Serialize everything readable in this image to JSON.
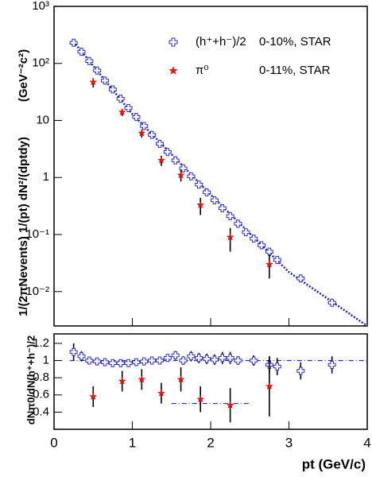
{
  "chart_data": [
    {
      "type": "scatter",
      "ylabel": "1/(2πNevents) 1/(pt) dN²/(dptdy)",
      "yunit": "(GeV⁻²c²)",
      "xlim": [
        0,
        4
      ],
      "ylim": [
        0.0025,
        1000
      ],
      "log_y": true,
      "yticks": [
        {
          "value": 1000,
          "label": "10³"
        },
        {
          "value": 100,
          "label": "10²"
        },
        10,
        1,
        {
          "value": 0.1,
          "label": "10⁻¹"
        },
        {
          "value": 0.01,
          "label": "10⁻²"
        }
      ],
      "legend": "upper right",
      "series": [
        {
          "name": "(h⁺+h⁻)/2",
          "note": "0-10%, STAR",
          "color": "#2a2acc",
          "marker": "cross",
          "x": [
            0.25,
            0.35,
            0.45,
            0.55,
            0.65,
            0.75,
            0.85,
            0.95,
            1.05,
            1.15,
            1.25,
            1.35,
            1.45,
            1.55,
            1.65,
            1.75,
            1.85,
            1.95,
            2.05,
            2.15,
            2.25,
            2.35,
            2.45,
            2.55,
            2.65,
            2.75,
            2.85,
            3.15,
            3.55
          ],
          "values": [
            230,
            160,
            110,
            75,
            50,
            35,
            24,
            16.5,
            11.5,
            8,
            5.6,
            3.9,
            2.8,
            2.0,
            1.45,
            1.05,
            0.75,
            0.55,
            0.4,
            0.29,
            0.21,
            0.155,
            0.11,
            0.085,
            0.065,
            0.05,
            0.036,
            0.017,
            0.0064
          ]
        },
        {
          "name": "π⁰",
          "note": "0-11%, STAR",
          "color": "#ee1111",
          "marker": "star",
          "x": [
            0.5,
            0.87,
            1.12,
            1.37,
            1.62,
            1.87,
            2.25,
            2.75
          ],
          "values": [
            47,
            14,
            6,
            2.0,
            1.1,
            0.33,
            0.09,
            0.03
          ],
          "lower": [
            38,
            12,
            5,
            1.6,
            0.85,
            0.22,
            0.05,
            0.017
          ],
          "upper": [
            55,
            16,
            7,
            2.4,
            1.35,
            0.44,
            0.13,
            0.045
          ]
        }
      ],
      "fit": {
        "color": "#1a1acc",
        "x": [
          0.25,
          1,
          2,
          3,
          4
        ],
        "values": [
          240,
          13,
          0.5,
          0.022,
          0.0025
        ]
      }
    },
    {
      "type": "scatter",
      "ylabel": "dNπ0/dN(h⁺+h⁻)/2",
      "xlabel": "pt (GeV/c)",
      "xlim": [
        0,
        4
      ],
      "ylim": [
        0.2,
        1.31
      ],
      "xticks": [
        0,
        1,
        2,
        3,
        4
      ],
      "yticks": [
        0.4,
        0.6,
        0.8,
        1,
        1.2
      ],
      "series": [
        {
          "color": "#2a2acc",
          "marker": "cross",
          "x": [
            0.25,
            0.35,
            0.45,
            0.55,
            0.65,
            0.75,
            0.85,
            0.95,
            1.05,
            1.15,
            1.25,
            1.35,
            1.45,
            1.55,
            1.65,
            1.75,
            1.85,
            1.95,
            2.05,
            2.15,
            2.25,
            2.35,
            2.55,
            2.75,
            2.85,
            3.15,
            3.55
          ],
          "values": [
            1.1,
            1.05,
            1.0,
            0.99,
            0.98,
            0.97,
            0.97,
            0.97,
            0.98,
            0.99,
            1.0,
            1.0,
            1.03,
            1.06,
            1.0,
            1.05,
            1.03,
            1.02,
            1.01,
            1.03,
            1.03,
            1.0,
            1.0,
            0.95,
            0.93,
            0.88,
            0.95
          ],
          "errors": [
            0.1,
            0.06,
            0.04,
            0.03,
            0.03,
            0.03,
            0.03,
            0.03,
            0.03,
            0.03,
            0.03,
            0.03,
            0.04,
            0.05,
            0.05,
            0.06,
            0.06,
            0.06,
            0.06,
            0.07,
            0.07,
            0.05,
            0.06,
            0.1,
            0.1,
            0.1,
            0.1
          ]
        },
        {
          "color": "#ee1111",
          "marker": "star",
          "x": [
            0.5,
            0.87,
            1.12,
            1.37,
            1.62,
            1.87,
            2.25,
            2.75
          ],
          "values": [
            0.58,
            0.76,
            0.78,
            0.62,
            0.78,
            0.55,
            0.48,
            0.7
          ],
          "errors": [
            0.12,
            0.12,
            0.12,
            0.12,
            0.14,
            0.15,
            0.2,
            0.35
          ]
        }
      ],
      "ref_lines": [
        {
          "y": 1,
          "x": [
            0.2,
            4
          ],
          "color": "#2a2acc"
        },
        {
          "y": 0.5,
          "x": [
            1.5,
            2.5
          ],
          "color": "#2a2acc"
        }
      ]
    }
  ]
}
